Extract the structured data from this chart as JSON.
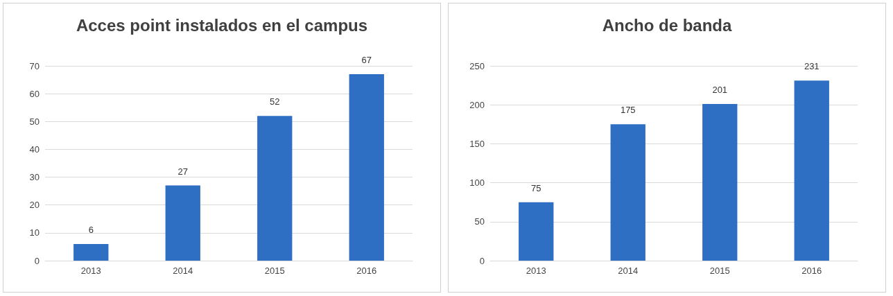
{
  "chart_data": [
    {
      "type": "bar",
      "title": "Acces point instalados en el campus",
      "categories": [
        "2013",
        "2014",
        "2015",
        "2016"
      ],
      "values": [
        6,
        27,
        52,
        67
      ],
      "color": "#2e6fc4",
      "ylim": [
        0,
        70
      ],
      "yticks": [
        0,
        10,
        20,
        30,
        40,
        50,
        60,
        70
      ],
      "grid": true,
      "data_labels": true
    },
    {
      "type": "bar",
      "title": "Ancho de banda",
      "categories": [
        "2013",
        "2014",
        "2015",
        "2016"
      ],
      "values": [
        75,
        175,
        201,
        231
      ],
      "color": "#2e6fc4",
      "ylim": [
        0,
        250
      ],
      "yticks": [
        0,
        50,
        100,
        150,
        200,
        250
      ],
      "grid": true,
      "data_labels": true
    }
  ]
}
